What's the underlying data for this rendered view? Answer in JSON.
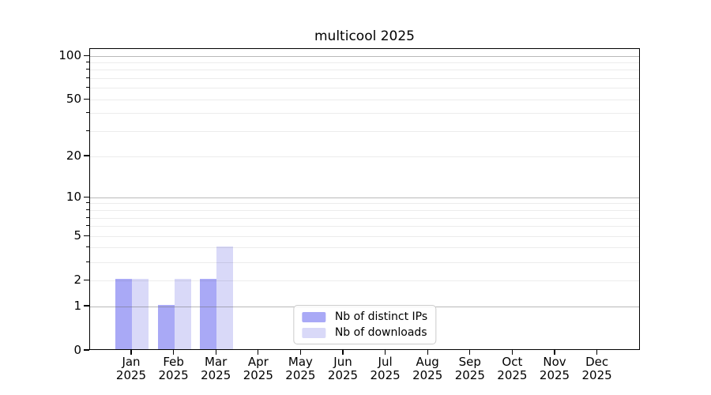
{
  "title": "multicool 2025",
  "colors": {
    "ips_bar": "#a9a9f6",
    "downloads_bar": "#d9d9f8",
    "decade_gridline": "rgba(100,100,100,0.45)",
    "minor_gridline": "rgba(0,0,0,0.075)",
    "spine": "#000000",
    "legend_border": "#cccccc"
  },
  "legend": {
    "items": [
      {
        "label": "Nb of distinct IPs",
        "color": "#a9a9f6"
      },
      {
        "label": "Nb of downloads",
        "color": "#d9d9f8"
      }
    ]
  },
  "chart_data": {
    "type": "bar",
    "title": "multicool 2025",
    "categories": [
      "Jan 2025",
      "Feb 2025",
      "Mar 2025",
      "Apr 2025",
      "May 2025",
      "Jun 2025",
      "Jul 2025",
      "Aug 2025",
      "Sep 2025",
      "Oct 2025",
      "Nov 2025",
      "Dec 2025"
    ],
    "x_tick_labels": [
      [
        "Jan",
        "2025"
      ],
      [
        "Feb",
        "2025"
      ],
      [
        "Mar",
        "2025"
      ],
      [
        "Apr",
        "2025"
      ],
      [
        "May",
        "2025"
      ],
      [
        "Jun",
        "2025"
      ],
      [
        "Jul",
        "2025"
      ],
      [
        "Aug",
        "2025"
      ],
      [
        "Sep",
        "2025"
      ],
      [
        "Oct",
        "2025"
      ],
      [
        "Nov",
        "2025"
      ],
      [
        "Dec",
        "2025"
      ]
    ],
    "series": [
      {
        "name": "Nb of distinct IPs",
        "color": "#a9a9f6",
        "values": [
          2,
          1,
          2,
          0,
          0,
          0,
          0,
          0,
          0,
          0,
          0,
          0
        ]
      },
      {
        "name": "Nb of downloads",
        "color": "#d9d9f8",
        "values": [
          2,
          2,
          4,
          0,
          0,
          0,
          0,
          0,
          0,
          0,
          0,
          0
        ]
      }
    ],
    "yscale": "log1p",
    "ylim": [
      0,
      112
    ],
    "y_tick_values": [
      0,
      1,
      2,
      5,
      10,
      20,
      50,
      100
    ],
    "y_tick_labels": [
      "0",
      "1",
      "2",
      "5",
      "10",
      "20",
      "50",
      "100"
    ],
    "y_decade_gridlines": [
      1,
      10,
      100
    ],
    "y_minor_gridlines": [
      2,
      3,
      4,
      5,
      6,
      7,
      8,
      9,
      20,
      30,
      40,
      50,
      60,
      70,
      80,
      90
    ],
    "grid_on_top": true,
    "legend_position": "lower center",
    "xlabel": "",
    "ylabel": ""
  }
}
